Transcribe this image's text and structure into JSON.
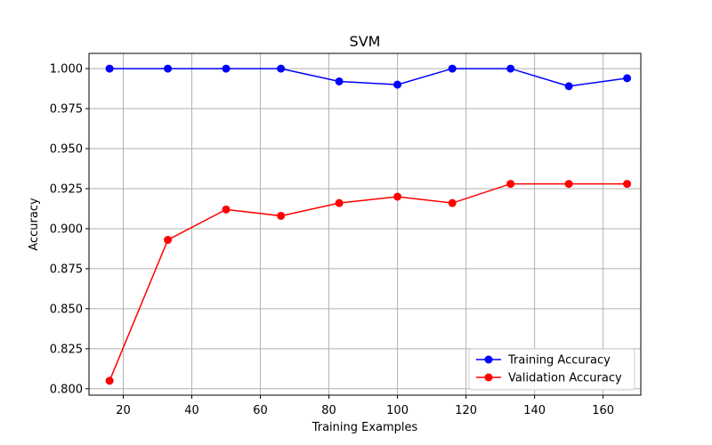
{
  "chart_data": {
    "type": "line",
    "title": "SVM",
    "xlabel": "Training Examples",
    "ylabel": "Accuracy",
    "xlim": [
      10,
      171
    ],
    "ylim": [
      0.796,
      1.0095
    ],
    "xticks": [
      20,
      40,
      60,
      80,
      100,
      120,
      140,
      160
    ],
    "yticks": [
      0.8,
      0.825,
      0.85,
      0.875,
      0.9,
      0.925,
      0.95,
      0.975,
      1.0
    ],
    "ytick_labels": [
      "0.800",
      "0.825",
      "0.850",
      "0.875",
      "0.900",
      "0.925",
      "0.950",
      "0.975",
      "1.000"
    ],
    "grid": true,
    "legend_position": "lower-right",
    "x": [
      16,
      33,
      50,
      66,
      83,
      100,
      116,
      133,
      150,
      167
    ],
    "series": [
      {
        "name": "Training Accuracy",
        "color": "#0000ff",
        "values": [
          1.0,
          1.0,
          1.0,
          1.0,
          0.992,
          0.99,
          1.0,
          1.0,
          0.989,
          0.994
        ]
      },
      {
        "name": "Validation Accuracy",
        "color": "#ff0000",
        "values": [
          0.805,
          0.893,
          0.912,
          0.908,
          0.916,
          0.92,
          0.916,
          0.928,
          0.928,
          0.928
        ]
      }
    ]
  }
}
